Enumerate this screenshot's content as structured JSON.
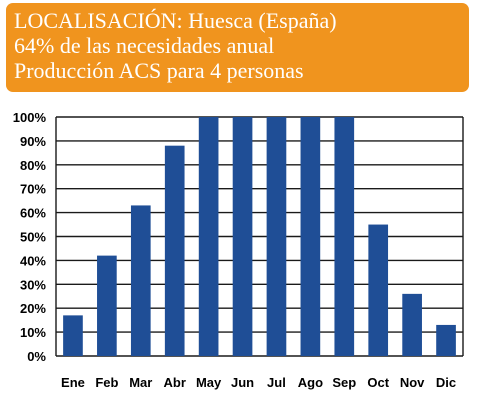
{
  "colors": {
    "header_bg": "#f0941e",
    "header_text": "#ffffff",
    "bar": "#1f4e96",
    "grid": "#1a1a1a",
    "tick_text": "#000000"
  },
  "header": {
    "line1": "LOCALISACIÓN: Huesca (España)",
    "line2": "64% de las necesidades anual",
    "line3": "Producción ACS para 4 personas"
  },
  "chart_data": {
    "type": "bar",
    "categories": [
      "Ene",
      "Feb",
      "Mar",
      "Abr",
      "May",
      "Jun",
      "Jul",
      "Ago",
      "Sep",
      "Oct",
      "Nov",
      "Dic"
    ],
    "values": [
      17,
      42,
      63,
      88,
      100,
      100,
      100,
      100,
      100,
      55,
      26,
      13
    ],
    "yticks": [
      "0%",
      "10%",
      "20%",
      "30%",
      "40%",
      "50%",
      "60%",
      "70%",
      "80%",
      "90%",
      "100%"
    ],
    "ylim": [
      0,
      100
    ],
    "grid": true,
    "legend": "none"
  }
}
